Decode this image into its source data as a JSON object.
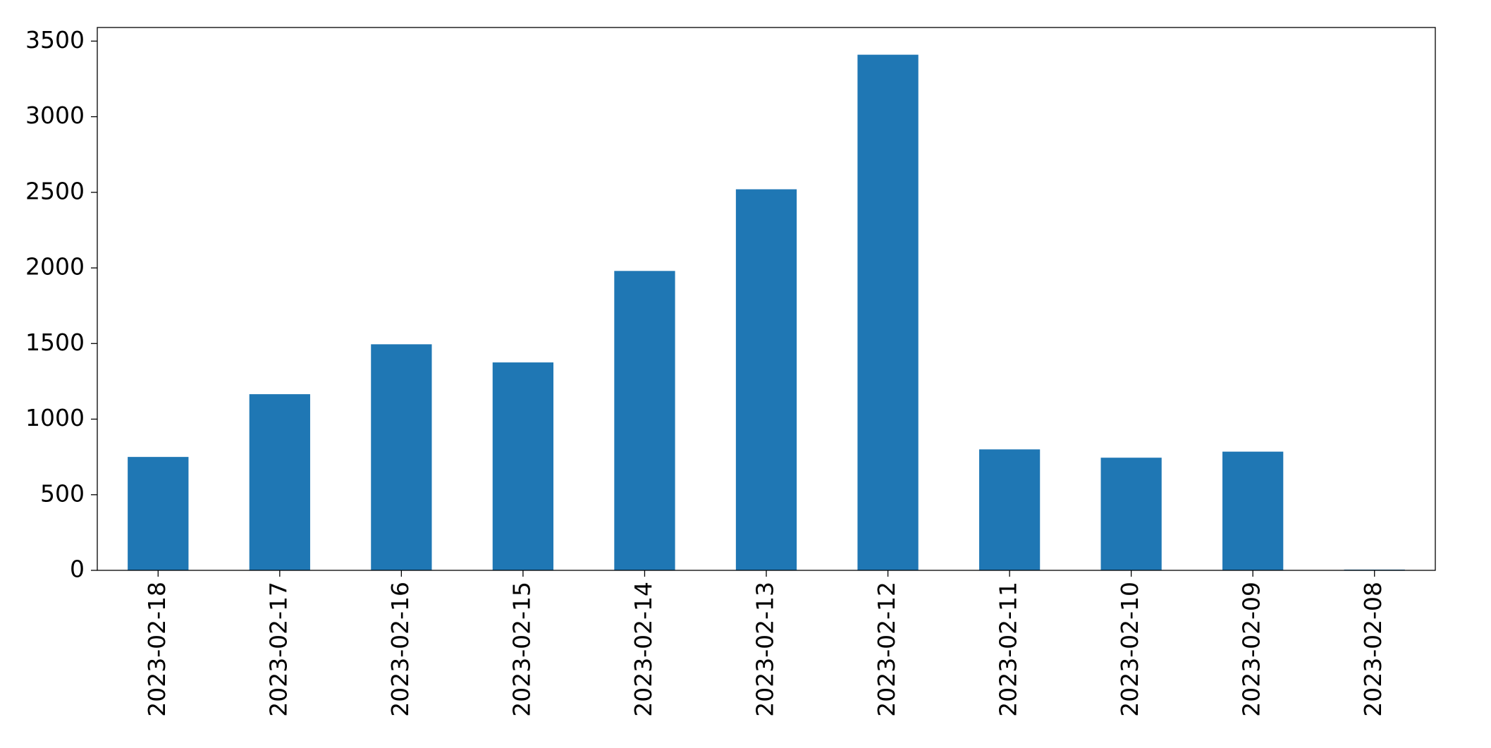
{
  "chart_data": {
    "type": "bar",
    "categories": [
      "2023-02-18",
      "2023-02-17",
      "2023-02-16",
      "2023-02-15",
      "2023-02-14",
      "2023-02-13",
      "2023-02-12",
      "2023-02-11",
      "2023-02-10",
      "2023-02-09",
      "2023-02-08"
    ],
    "values": [
      750,
      1165,
      1495,
      1375,
      1980,
      2520,
      3410,
      800,
      745,
      785,
      5
    ],
    "color": "#1f77b4",
    "ylim": [
      0,
      3590
    ],
    "yticks": [
      0,
      500,
      1000,
      1500,
      2000,
      2500,
      3000,
      3500
    ],
    "grid": false
  }
}
